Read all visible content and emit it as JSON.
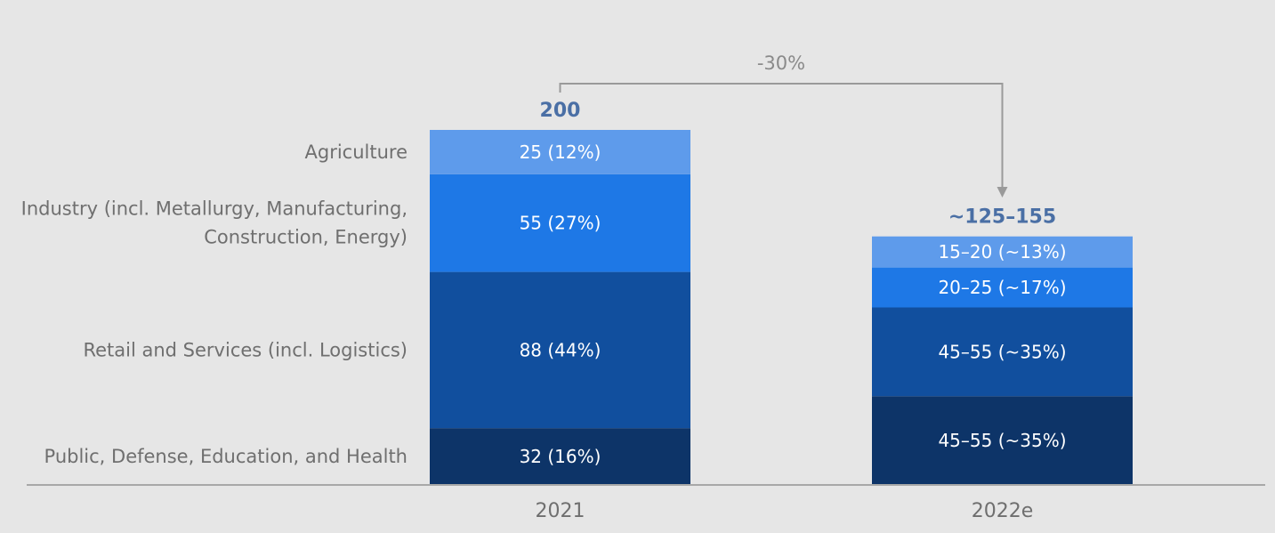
{
  "chart_data": {
    "type": "bar",
    "stacked": true,
    "categories": [
      "2021",
      "2022e"
    ],
    "series": [
      {
        "name": "Public, Defense, Education, and Health",
        "values": [
          32,
          50
        ],
        "labels": [
          "32 (16%)",
          "45–55 (~35%)"
        ],
        "color": "#0d3468"
      },
      {
        "name": "Retail and Services (incl. Logistics)",
        "values": [
          88,
          50
        ],
        "labels": [
          "88 (44%)",
          "45–55 (~35%)"
        ],
        "color": "#114f9e"
      },
      {
        "name": "Industry (incl. Metallurgy, Manufacturing, Construction, Energy)",
        "name_lines": [
          "Industry (incl. Metallurgy, Manufacturing,",
          "Construction, Energy)"
        ],
        "values": [
          55,
          22.5
        ],
        "labels": [
          "55 (27%)",
          "20–25 (~17%)"
        ],
        "color": "#1e78e6"
      },
      {
        "name": "Agriculture",
        "values": [
          25,
          17.5
        ],
        "labels": [
          "25 (12%)",
          "15–20 (~13%)"
        ],
        "color": "#5e9beb"
      }
    ],
    "totals": [
      "200",
      "~125–155"
    ],
    "change_annotation": "-30%",
    "ylim": [
      0,
      200
    ],
    "legend": "left",
    "grid": false
  }
}
